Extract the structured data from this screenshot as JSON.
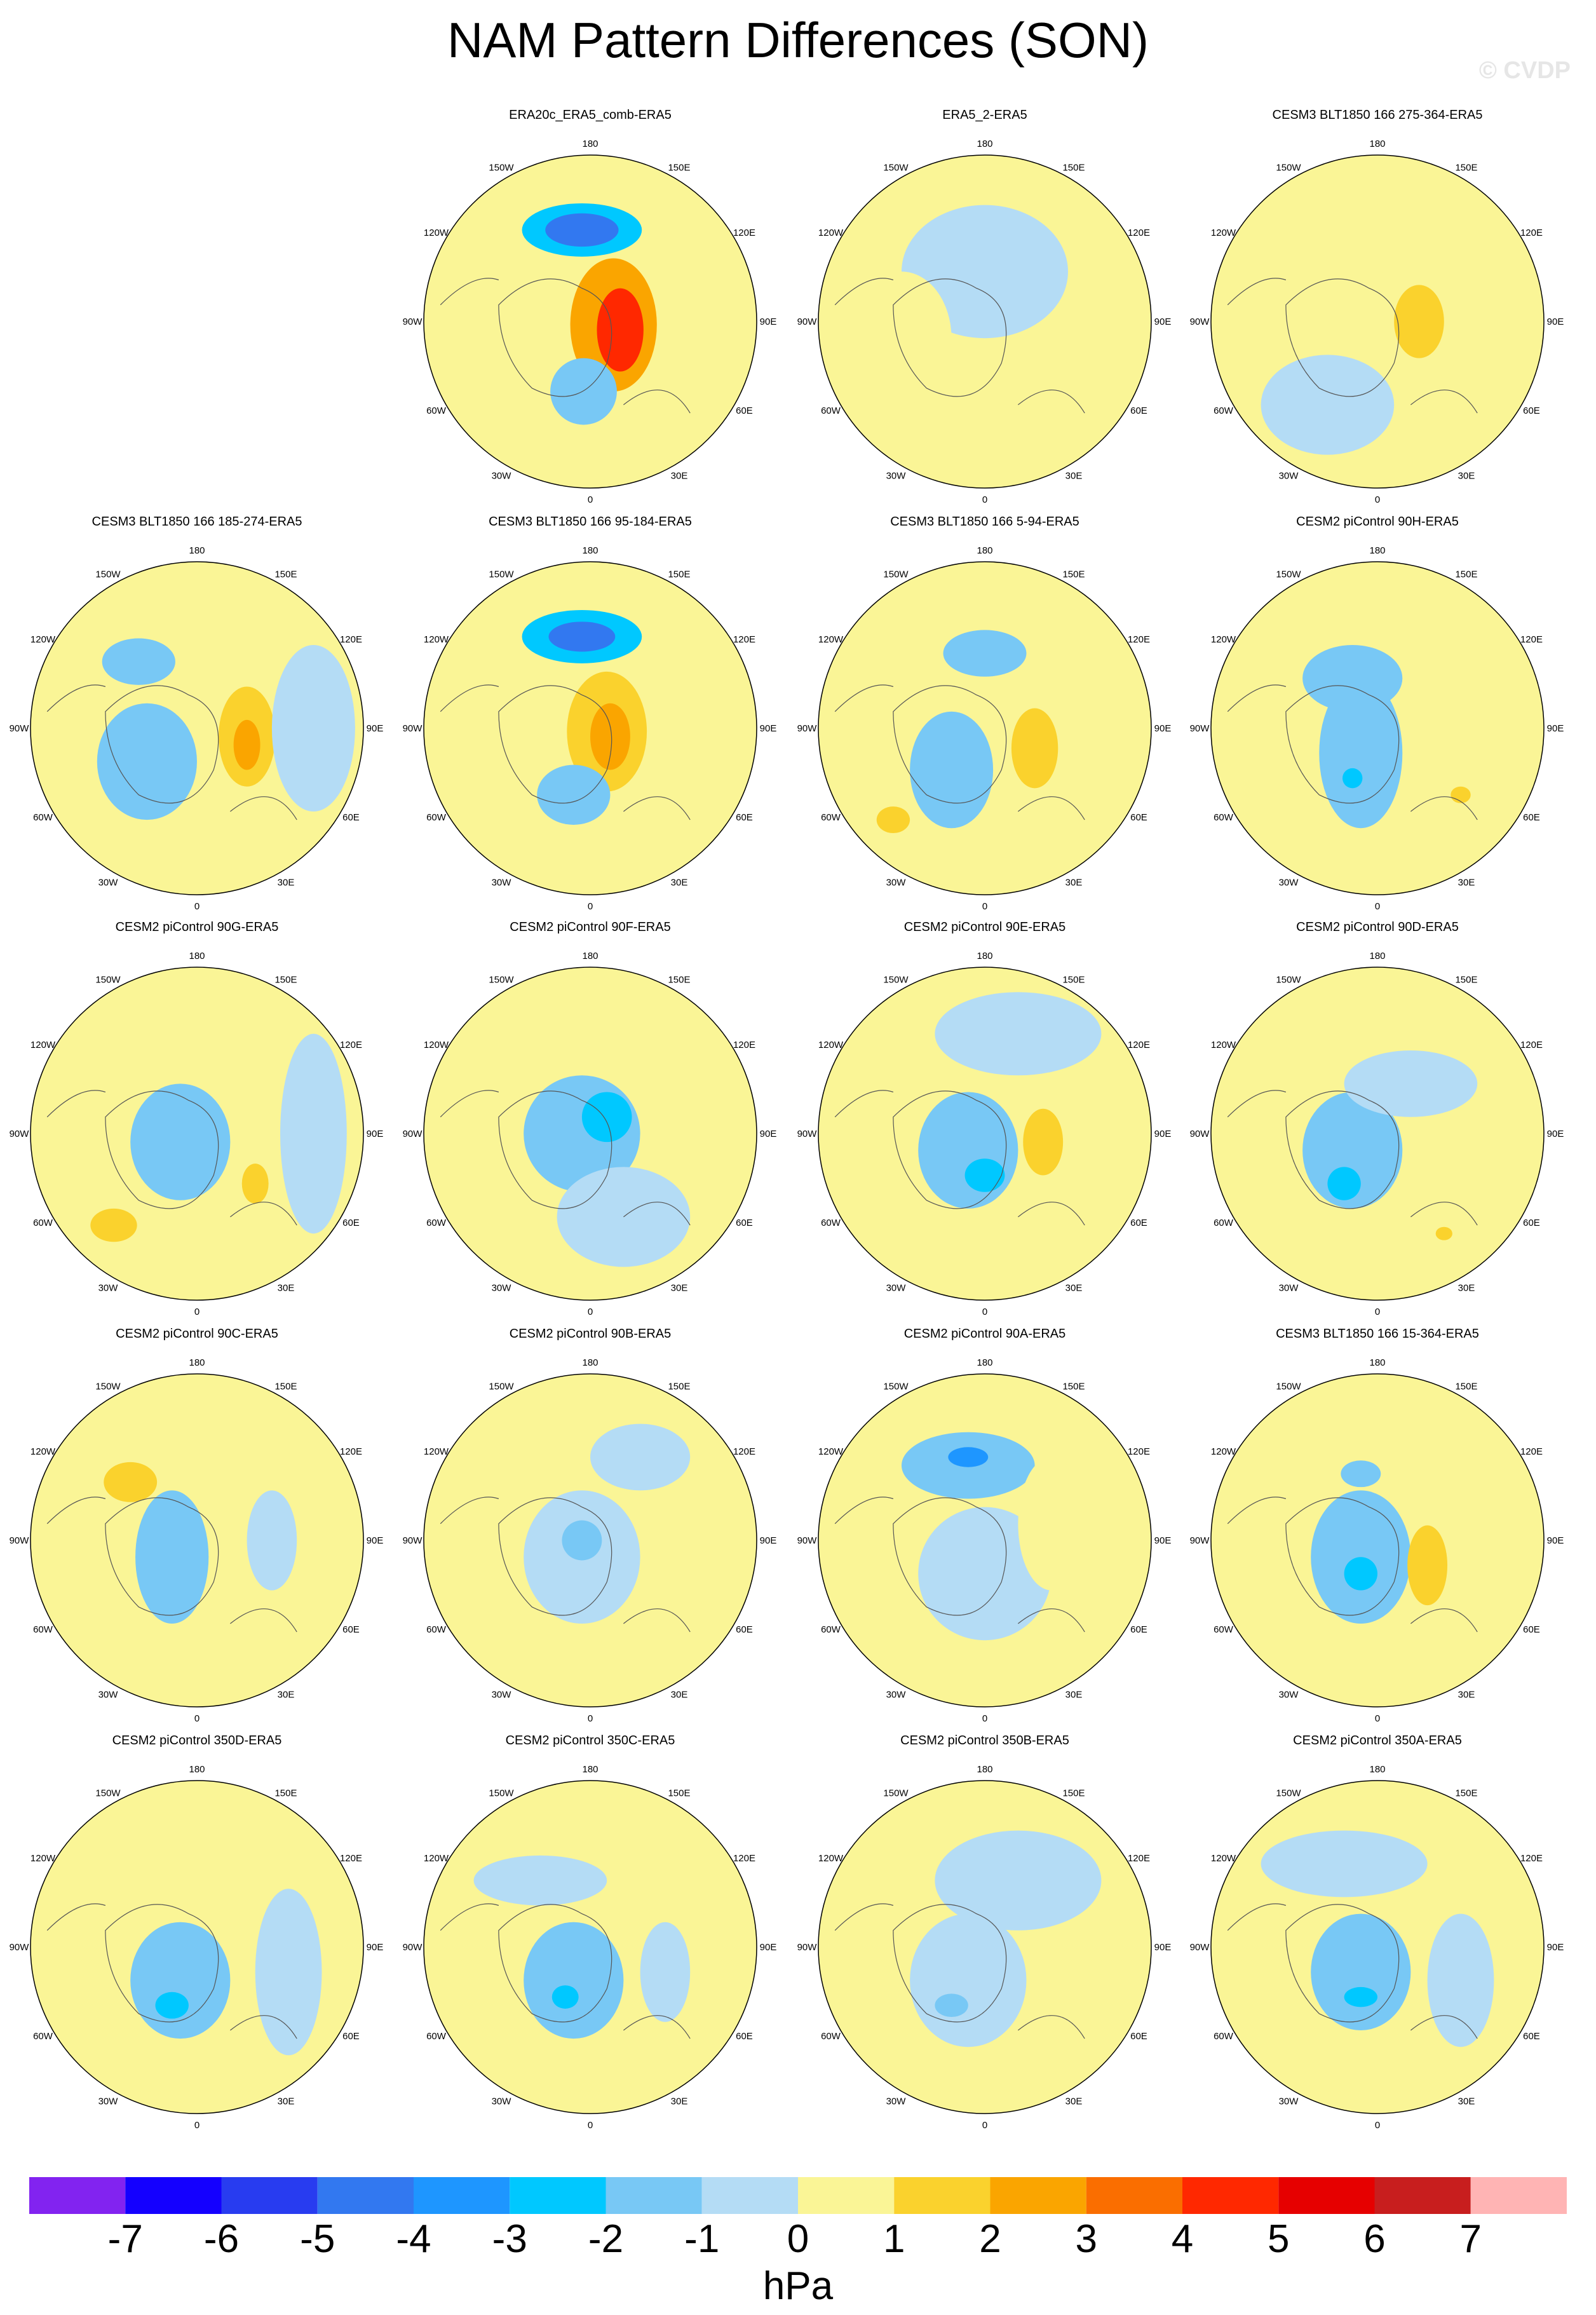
{
  "title": "NAM Pattern Differences (SON)",
  "watermark": "© CVDP",
  "colorbar": {
    "units": "hPa",
    "tick_labels": [
      "-7",
      "-6",
      "-5",
      "-4",
      "-3",
      "-2",
      "-1",
      "0",
      "1",
      "2",
      "3",
      "4",
      "5",
      "6",
      "7"
    ],
    "colors": [
      "#8223F0",
      "#1400FF",
      "#283CF0",
      "#3278F0",
      "#1E96FF",
      "#00C8FF",
      "#78C8F5",
      "#B4DCF5",
      "#FAF596",
      "#FAD22D",
      "#FAA500",
      "#FA6E00",
      "#FF2800",
      "#E60000",
      "#C81E1E",
      "#FFB4B4"
    ]
  },
  "longitude_labels": [
    "180",
    "150E",
    "120E",
    "90E",
    "60E",
    "30E",
    "0",
    "30W",
    "60W",
    "90W",
    "120W",
    "150W"
  ],
  "chart_data": {
    "type": "heatmap",
    "projection": "north polar stereographic",
    "variable": "NAM pattern difference",
    "season": "SON",
    "units": "hPa",
    "levels": [
      -7,
      -6,
      -5,
      -4,
      -3,
      -2,
      -1,
      0,
      1,
      2,
      3,
      4,
      5,
      6,
      7
    ],
    "panels": [
      {
        "title": "",
        "blank": true
      },
      {
        "title": "ERA20c_ERA5_comb-ERA5",
        "min_approx": -5,
        "max_approx": 4
      },
      {
        "title": "ERA5_2-ERA5",
        "min_approx": -1,
        "max_approx": 1
      },
      {
        "title": "CESM3 BLT1850 166 275-364-ERA5",
        "min_approx": -1,
        "max_approx": 2
      },
      {
        "title": "CESM3 BLT1850 166 185-274-ERA5",
        "min_approx": -3,
        "max_approx": 3
      },
      {
        "title": "CESM3 BLT1850 166 95-184-ERA5",
        "min_approx": -5,
        "max_approx": 3
      },
      {
        "title": "CESM3 BLT1850 166 5-94-ERA5",
        "min_approx": -3,
        "max_approx": 2
      },
      {
        "title": "CESM2 piControl 90H-ERA5",
        "min_approx": -3,
        "max_approx": 2
      },
      {
        "title": "CESM2 piControl 90G-ERA5",
        "min_approx": -3,
        "max_approx": 2
      },
      {
        "title": "CESM2 piControl 90F-ERA5",
        "min_approx": -3,
        "max_approx": 1
      },
      {
        "title": "CESM2 piControl 90E-ERA5",
        "min_approx": -3,
        "max_approx": 2
      },
      {
        "title": "CESM2 piControl 90D-ERA5",
        "min_approx": -3,
        "max_approx": 2
      },
      {
        "title": "CESM2 piControl 90C-ERA5",
        "min_approx": -2,
        "max_approx": 2
      },
      {
        "title": "CESM2 piControl 90B-ERA5",
        "min_approx": -2,
        "max_approx": 1
      },
      {
        "title": "CESM2 piControl 90A-ERA5",
        "min_approx": -4,
        "max_approx": 1
      },
      {
        "title": "CESM3 BLT1850 166 15-364-ERA5",
        "min_approx": -3,
        "max_approx": 2
      },
      {
        "title": "CESM2 piControl 350D-ERA5",
        "min_approx": -2,
        "max_approx": 1
      },
      {
        "title": "CESM2 piControl 350C-ERA5",
        "min_approx": -2,
        "max_approx": 1
      },
      {
        "title": "CESM2 piControl 350B-ERA5",
        "min_approx": -2,
        "max_approx": 1
      },
      {
        "title": "CESM2 piControl 350A-ERA5",
        "min_approx": -2,
        "max_approx": 1
      }
    ]
  }
}
